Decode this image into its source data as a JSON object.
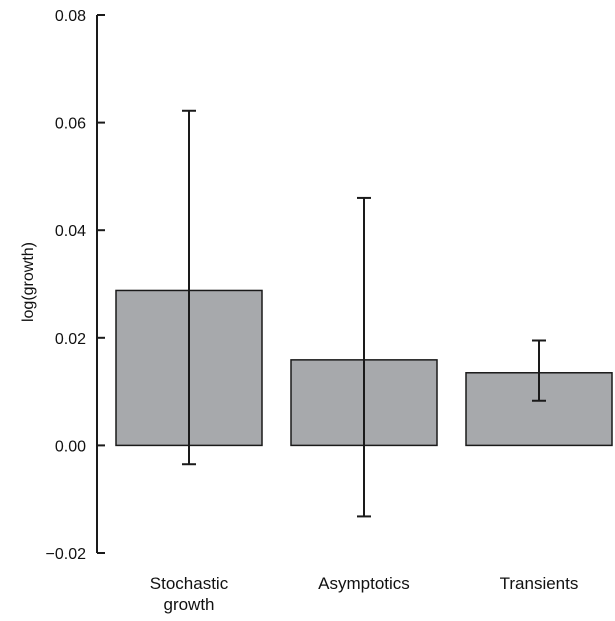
{
  "chart_data": {
    "type": "bar",
    "title": "",
    "xlabel": "",
    "ylabel": "log(growth)",
    "ylim": [
      -0.02,
      0.08
    ],
    "yticks": [
      -0.02,
      0.0,
      0.02,
      0.04,
      0.06,
      0.08
    ],
    "ytick_labels": [
      "−0.02",
      "0.00",
      "0.02",
      "0.04",
      "0.06",
      "0.08"
    ],
    "grid": false,
    "legend": "none",
    "categories": [
      [
        "Stochastic",
        "growth"
      ],
      [
        "Asymptotics"
      ],
      [
        "Transients"
      ]
    ],
    "values": [
      0.0288,
      0.0159,
      0.0135
    ],
    "error_low": [
      -0.0035,
      -0.0132,
      0.0083
    ],
    "error_high": [
      0.0622,
      0.046,
      0.0195
    ],
    "colors": {
      "bar_fill": "#a7a9ac",
      "bar_stroke": "#1a1a1a",
      "axis": "#1a1a1a",
      "error_bar": "#1a1a1a"
    }
  }
}
